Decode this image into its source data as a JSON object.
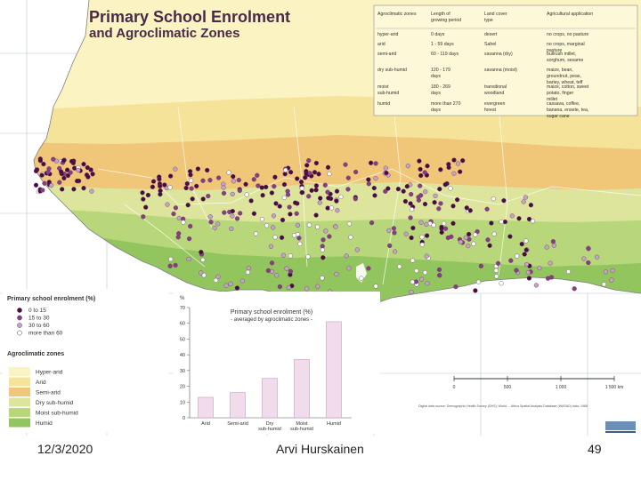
{
  "title_line1": "Primary School Enrolment",
  "title_line2": "and Agroclimatic Zones",
  "zone_table": {
    "headers": [
      "Agroclimatic zones",
      "Length of growing period",
      "Land cover type",
      "Agricultural application"
    ],
    "rows": [
      [
        "hyper-arid",
        "0 days",
        "desert",
        "no crops, no pasture"
      ],
      [
        "arid",
        "1 - 59 days",
        "Sahel",
        "no crops, marginal pasture"
      ],
      [
        "semi-arid",
        "60 - 119 days",
        "savanna (dry)",
        "bullrush millet, sorghum, sesame"
      ],
      [
        "dry sub-humid",
        "120 - 179 days",
        "savanna (moist)",
        "maize, bean, groundnut, peas, barley, wheat, teff"
      ],
      [
        "moist sub-humid",
        "180 - 269 days",
        "transitional woodland",
        "maize, cotton, sweet potato, finger millet"
      ],
      [
        "humid",
        "more than 270 days",
        "evergreen forest",
        "cassava, coffee, banana, ensete, tea, sugar cane"
      ]
    ]
  },
  "enrolment_legend": {
    "title": "Primary school enrolment (%)",
    "items": [
      "0 to 15",
      "15 to 30",
      "30 to 60",
      "more than 60"
    ],
    "colors": [
      "#4a0a44",
      "#8a3c84",
      "#c8a2c6",
      "#ffffff"
    ]
  },
  "zone_legend": {
    "title": "Agroclimatic zones",
    "items": [
      "Hyper-arid",
      "Arid",
      "Semi-arid",
      "Dry sub-humid",
      "Moist sub-humid",
      "Humid"
    ],
    "colors": [
      "#fbf3c2",
      "#f6e39a",
      "#f0c679",
      "#dde59c",
      "#b7d77a",
      "#93c55f"
    ]
  },
  "chart_data": {
    "type": "bar",
    "title": "Primary school enrolment (%)",
    "subtitle": "- averaged by agroclimatic zones -",
    "ylabel": "%",
    "ylim": [
      0,
      70
    ],
    "yticks": [
      0,
      10,
      20,
      30,
      40,
      50,
      60,
      70
    ],
    "categories": [
      "Arid",
      "Semi-arid",
      "Dry sub-humid",
      "Moist sub-humid",
      "Humid"
    ],
    "values": [
      13,
      16,
      25,
      37,
      61
    ]
  },
  "scale_bar": {
    "ticks": [
      "0",
      "500",
      "1 000",
      "1 500 km"
    ]
  },
  "source_text": "Digital data source: Demographic Health Survey (DHS); World ... Africa Spatial Analysis Database (WASAD) data, 1968",
  "footer": {
    "date": "12/3/2020",
    "author": "Arvi Hurskainen",
    "page": "49"
  }
}
